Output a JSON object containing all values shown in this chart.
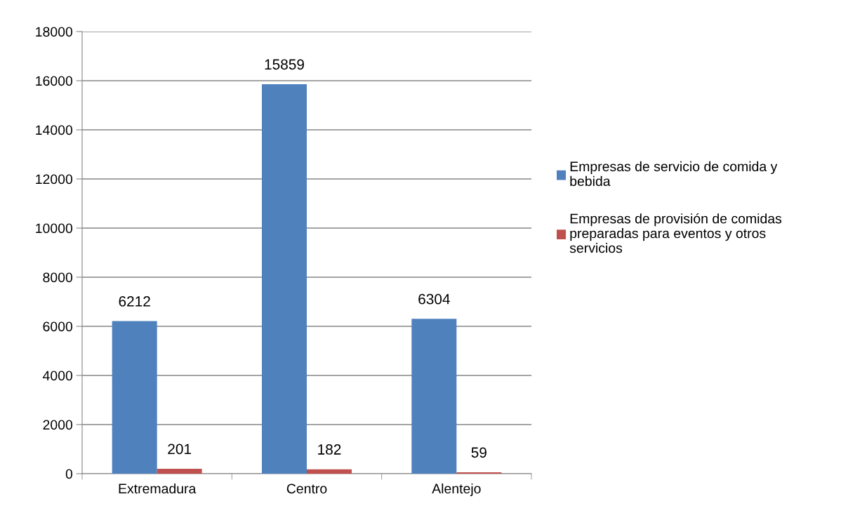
{
  "chart_data": {
    "type": "bar",
    "categories": [
      "Extremadura",
      "Centro",
      "Alentejo"
    ],
    "series": [
      {
        "name": "Empresas de servicio de comida y bebida",
        "color": "#4f81bd",
        "values": [
          6212,
          15859,
          6304
        ]
      },
      {
        "name": "Empresas de provisión de comidas preparadas para eventos y otros servicios",
        "color": "#c0504d",
        "values": [
          201,
          182,
          59
        ]
      }
    ],
    "ylim": [
      0,
      18000
    ],
    "yticks": [
      0,
      2000,
      4000,
      6000,
      8000,
      10000,
      12000,
      14000,
      16000,
      18000
    ],
    "grid": "y",
    "legend": "right",
    "data_labels": true
  }
}
